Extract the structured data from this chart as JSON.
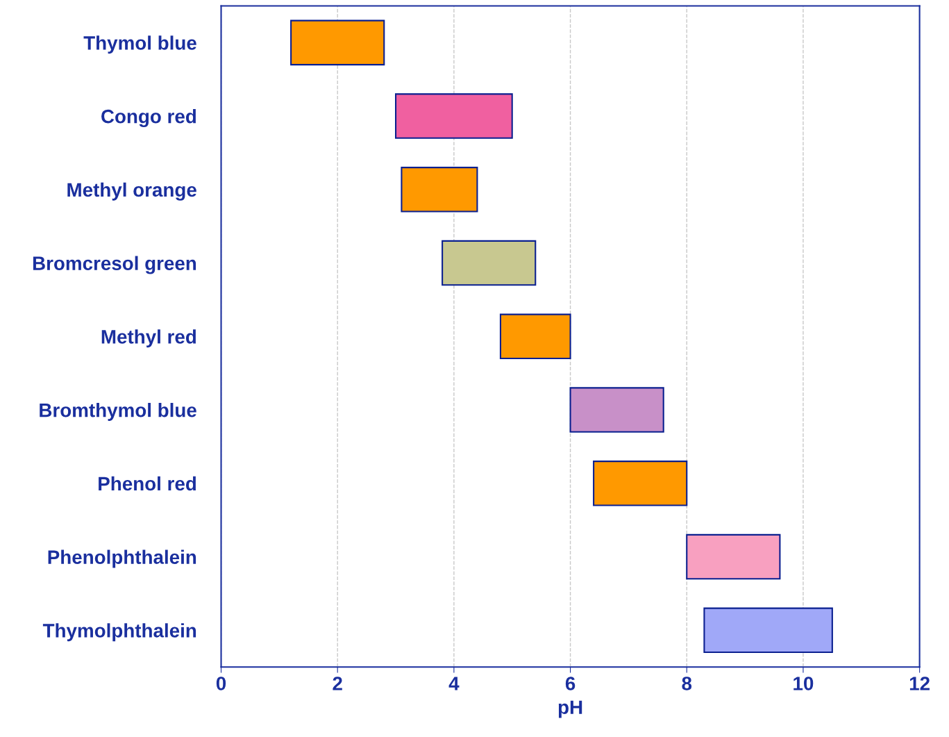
{
  "chart_data": {
    "type": "bar",
    "orientation": "horizontal",
    "xlabel": "pH",
    "categories": [
      "Thymol blue",
      "Congo red",
      "Methyl orange",
      "Bromcresol green",
      "Methyl red",
      "Bromthymol blue",
      "Phenol red",
      "Phenolphthalein",
      "Thymolphthalein"
    ],
    "base": [
      1.2,
      3.0,
      3.1,
      3.8,
      4.8,
      6.0,
      6.4,
      8.0,
      8.3
    ],
    "values": [
      1.6,
      2.0,
      1.3,
      1.6,
      1.2,
      1.6,
      1.6,
      1.6,
      2.2
    ],
    "colors": [
      "#ff9900",
      "#f060a0",
      "#ff9900",
      "#c8c890",
      "#ff9900",
      "#c890c8",
      "#ff9900",
      "#f8a0c0",
      "#a0a8f8"
    ],
    "xlim": [
      0,
      12
    ],
    "xticks": [
      0,
      2,
      4,
      6,
      8,
      10,
      12
    ],
    "grid": "x"
  }
}
